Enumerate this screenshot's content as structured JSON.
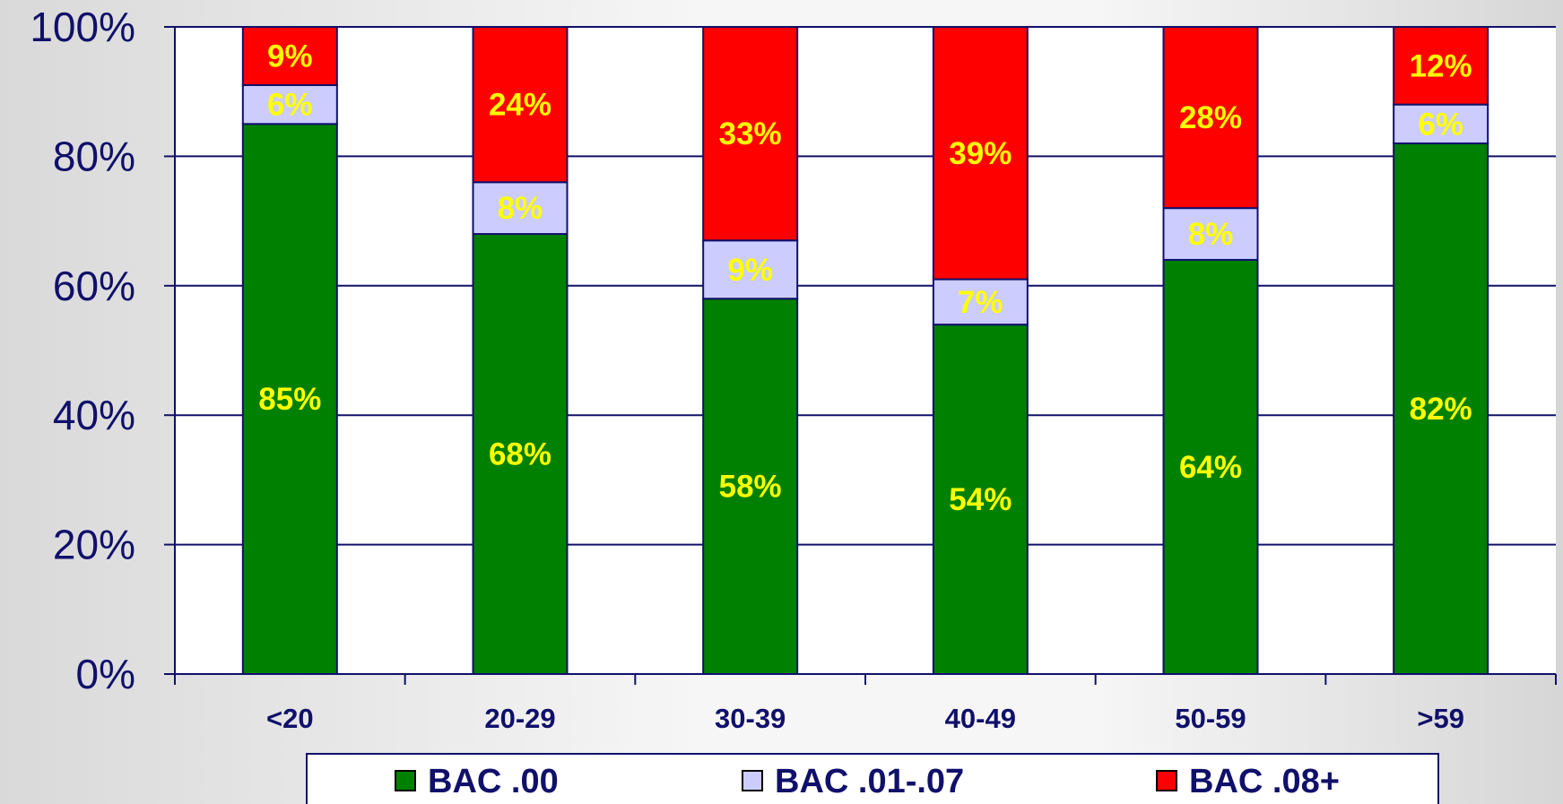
{
  "chart_data": {
    "type": "bar",
    "stacked": true,
    "categories": [
      "<20",
      "20-29",
      "30-39",
      "40-49",
      "50-59",
      ">59"
    ],
    "series": [
      {
        "name": "BAC .00",
        "color": "#008000",
        "values": [
          85,
          68,
          58,
          54,
          64,
          82
        ],
        "labels": [
          "85%",
          "68%",
          "58%",
          "54%",
          "64%",
          "82%"
        ]
      },
      {
        "name": "BAC .01-.07",
        "color": "#ccccff",
        "values": [
          6,
          8,
          9,
          7,
          8,
          6
        ],
        "labels": [
          "6%",
          "8%",
          "9%",
          "7%",
          "8%",
          "6%"
        ]
      },
      {
        "name": "BAC .08+",
        "color": "#ff0000",
        "values": [
          9,
          24,
          33,
          39,
          28,
          12
        ],
        "labels": [
          "9%",
          "24%",
          "33%",
          "39%",
          "28%",
          "12%"
        ]
      }
    ],
    "ylim": [
      0,
      100
    ],
    "yticks": [
      0,
      20,
      40,
      60,
      80,
      100
    ],
    "ytick_labels": [
      "0%",
      "20%",
      "40%",
      "60%",
      "80%",
      "100%"
    ],
    "title": "",
    "xlabel": "",
    "ylabel": "",
    "grid": true,
    "legend_position": "bottom"
  }
}
